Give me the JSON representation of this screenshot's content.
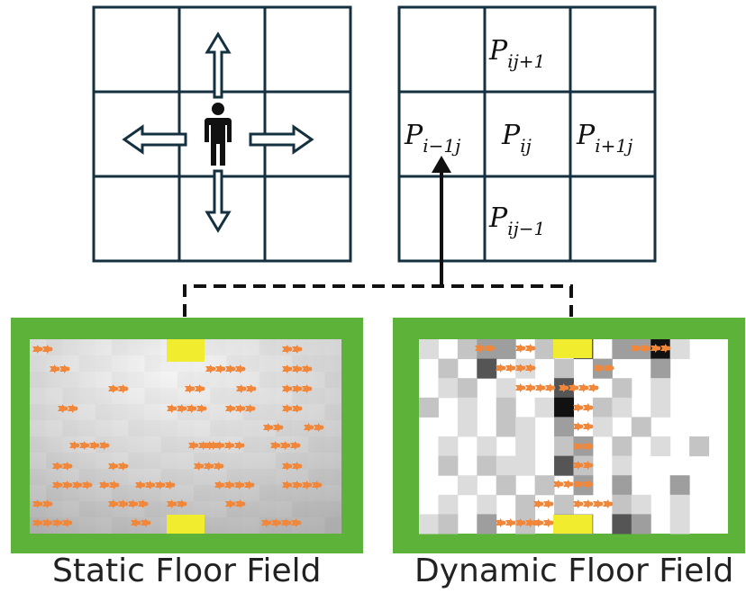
{
  "movement_grid": {
    "arrows": [
      "up",
      "left",
      "right",
      "down"
    ],
    "person_icon": "person-icon"
  },
  "probability_grid": {
    "cells": {
      "top": {
        "base": "P",
        "sub": "ij+1"
      },
      "left": {
        "base": "P",
        "sub": "i−1j"
      },
      "center": {
        "base": "P",
        "sub": "ij"
      },
      "right": {
        "base": "P",
        "sub": "i+1j"
      },
      "bottom": {
        "base": "P",
        "sub": "ij−1"
      }
    }
  },
  "panels": {
    "static": {
      "label": "Static Floor Field"
    },
    "dynamic": {
      "label": "Dynamic Floor Field"
    }
  },
  "colors": {
    "grid_line": "#15303f",
    "frame_green": "#5db33a",
    "exit_yellow": "#f1ec2e",
    "agent_orange": "#f0873a"
  }
}
